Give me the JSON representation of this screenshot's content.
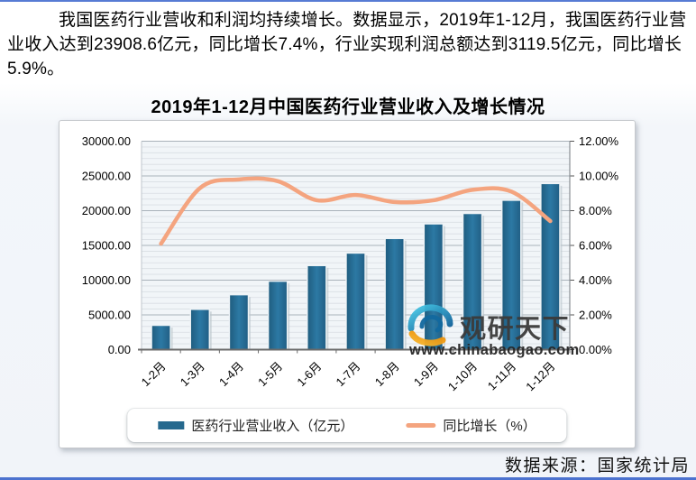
{
  "page": {
    "intro_text": "我国医药行业营收和利润均持续增长。数据显示，2019年1-12月，我国医药行业营业收入达到23908.6亿元，同比增长7.4%，行业实现利润总额达到3119.5亿元，同比增长5.9%。",
    "source_text": "数据来源：国家统计局",
    "accent_border_color": "#4c72cf"
  },
  "watermark": {
    "brand_name": "观研天下",
    "website": "www.chinabaogao.com",
    "logo": "eye-swirl-icon",
    "text_color": "#3b3b3b"
  },
  "chart_data": {
    "type": "bar+line combo",
    "title": "2019年1-12月中国医药行业营业收入及增长情况",
    "categories": [
      "1-2月",
      "1-3月",
      "1-4月",
      "1-5月",
      "1-6月",
      "1-7月",
      "1-8月",
      "1-9月",
      "1-10月",
      "1-11月",
      "1-12月"
    ],
    "series": [
      {
        "name": "医药行业营业收入（亿元）",
        "type": "bar",
        "axis": "left",
        "color": "#26698e",
        "values": [
          3500,
          5800,
          7900,
          9850,
          12100,
          13900,
          16000,
          18100,
          19600,
          21500,
          23908.6
        ]
      },
      {
        "name": "同比增长（%）",
        "type": "line",
        "axis": "right",
        "color": "#f4a47f",
        "values": [
          6.1,
          9.3,
          9.8,
          9.7,
          8.6,
          8.9,
          8.5,
          8.6,
          9.2,
          9.1,
          7.4
        ]
      }
    ],
    "left_axis": {
      "min": 0,
      "max": 30000,
      "major_step": 5000,
      "minor_divisions": 36,
      "tick_labels": [
        "0.00",
        "5000.00",
        "10000.00",
        "15000.00",
        "20000.00",
        "25000.00",
        "30000.00"
      ]
    },
    "right_axis": {
      "min": 0,
      "max": 12,
      "major_step": 2,
      "tick_labels": [
        "0.00%",
        "2.00%",
        "4.00%",
        "6.00%",
        "8.00%",
        "10.00%",
        "12.00%"
      ]
    },
    "grid": true,
    "legend_position": "bottom",
    "plot_bg": "#f1f5f8",
    "grid_minor_color": "#d9dee3",
    "grid_major_color": "#a9b2ba",
    "axis_color": "#6a6a6a"
  }
}
